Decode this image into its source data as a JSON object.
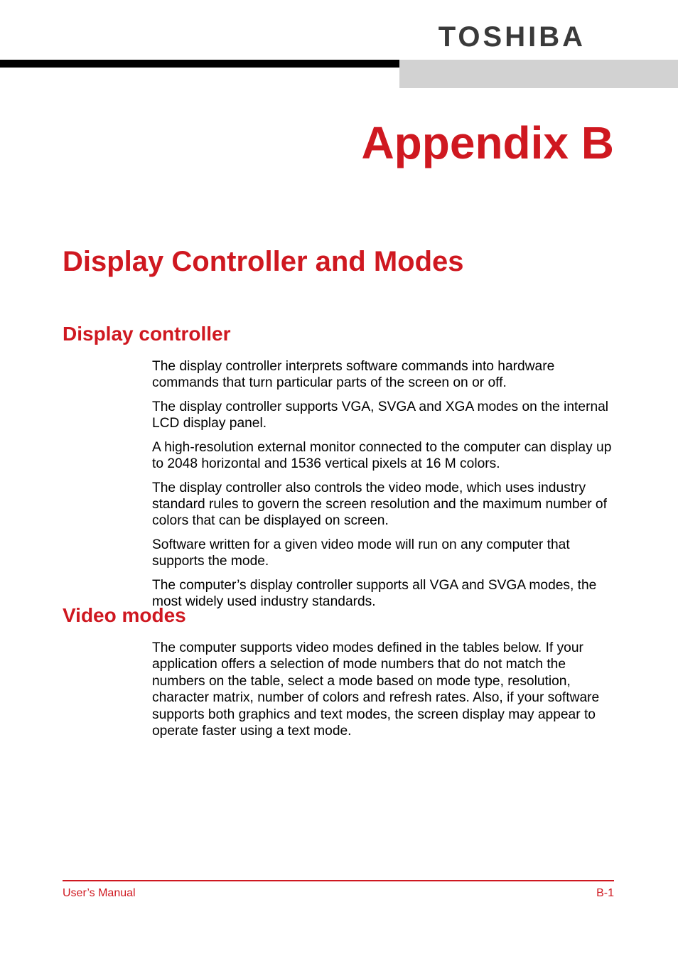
{
  "brand": "TOSHIBA",
  "appendix_label": "Appendix B",
  "chapter_title": "Display Controller and Modes",
  "sections": {
    "display_controller": {
      "title": "Display controller",
      "paragraphs": [
        "The display controller interprets software commands into hardware commands that turn particular parts of the screen on or off.",
        "The display controller supports VGA, SVGA and XGA modes on the internal LCD display panel.",
        "A high-resolution external monitor connected to the computer can display up to 2048 horizontal and 1536 vertical pixels at 16 M colors.",
        "The display controller also controls the video mode, which uses industry standard rules to govern the screen resolution and the maximum number of colors that can be displayed on screen.",
        "Software written for a given video mode will run on any computer that supports the mode.",
        "The computer’s display controller supports all VGA and SVGA modes, the most widely used industry standards."
      ]
    },
    "video_modes": {
      "title": "Video modes",
      "paragraphs": [
        "The computer supports video modes defined in the tables below. If your application offers a selection of mode numbers that do not match the numbers on the table, select a mode based on mode type, resolution, character matrix, number of colors and refresh rates. Also, if your software supports both graphics and text modes, the screen display may appear to operate faster using a text mode."
      ]
    }
  },
  "footer": {
    "left": "User’s Manual",
    "right": "B-1"
  },
  "colors": {
    "accent": "#cf1820",
    "brand_text": "#3a3a3a",
    "rule_gray": "#d2d2d2",
    "rule_black": "#000000",
    "text": "#000000",
    "background": "#ffffff"
  },
  "typography": {
    "brand_fontsize": 40,
    "appendix_fontsize": 64,
    "chapter_fontsize": 40,
    "section_fontsize": 28,
    "body_fontsize": 19.2,
    "footer_fontsize": 16
  }
}
